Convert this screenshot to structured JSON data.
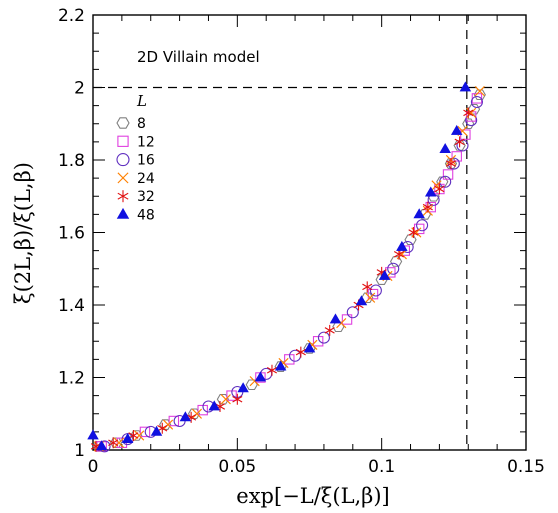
{
  "chart_data": {
    "type": "scatter",
    "title": "2D Villain model",
    "xlabel": "exp[−L/ξ(L,β)]",
    "ylabel": "ξ(2L,β)/ξ(L,β)",
    "xlim": [
      0,
      0.15
    ],
    "ylim": [
      1,
      2.2
    ],
    "x_ticks": [
      "0",
      "0.05",
      "0.1",
      "0.15"
    ],
    "y_ticks": [
      "1",
      "1.2",
      "1.4",
      "1.6",
      "1.8",
      "2",
      "2.2"
    ],
    "legend_title": "L",
    "legend_position": "top-left",
    "reference_lines": [
      {
        "orientation": "horizontal",
        "value": 2,
        "style": "dashed"
      },
      {
        "orientation": "vertical",
        "value": 0.1295,
        "style": "dashed"
      }
    ],
    "series": [
      {
        "name": "8",
        "marker": "hexagon-open",
        "color": "#808080",
        "x": [
          0.002,
          0.008,
          0.015,
          0.025,
          0.035,
          0.045,
          0.055,
          0.065,
          0.075,
          0.085,
          0.095,
          0.1,
          0.105,
          0.11,
          0.115,
          0.118,
          0.121,
          0.124,
          0.127,
          0.13,
          0.132,
          0.134
        ],
        "y": [
          1.01,
          1.02,
          1.04,
          1.07,
          1.1,
          1.14,
          1.18,
          1.23,
          1.28,
          1.34,
          1.42,
          1.47,
          1.52,
          1.58,
          1.65,
          1.7,
          1.74,
          1.79,
          1.84,
          1.9,
          1.94,
          1.98
        ]
      },
      {
        "name": "12",
        "marker": "square-open",
        "color": "#e040e0",
        "x": [
          0.003,
          0.01,
          0.018,
          0.028,
          0.038,
          0.048,
          0.058,
          0.068,
          0.078,
          0.088,
          0.097,
          0.103,
          0.108,
          0.113,
          0.117,
          0.12,
          0.123,
          0.126,
          0.129,
          0.131,
          0.133
        ],
        "y": [
          1.01,
          1.02,
          1.05,
          1.08,
          1.11,
          1.15,
          1.2,
          1.25,
          1.3,
          1.36,
          1.43,
          1.49,
          1.55,
          1.61,
          1.67,
          1.72,
          1.76,
          1.81,
          1.87,
          1.92,
          1.97
        ]
      },
      {
        "name": "16",
        "marker": "circle-open",
        "color": "#6030c0",
        "x": [
          0.004,
          0.012,
          0.02,
          0.03,
          0.04,
          0.05,
          0.06,
          0.07,
          0.08,
          0.09,
          0.098,
          0.104,
          0.109,
          0.114,
          0.118,
          0.122,
          0.125,
          0.128,
          0.131,
          0.133
        ],
        "y": [
          1.01,
          1.03,
          1.05,
          1.08,
          1.12,
          1.16,
          1.21,
          1.26,
          1.31,
          1.38,
          1.44,
          1.5,
          1.56,
          1.62,
          1.69,
          1.74,
          1.79,
          1.84,
          1.91,
          1.96
        ]
      },
      {
        "name": "24",
        "marker": "cross",
        "color": "#ff8000",
        "x": [
          0.002,
          0.009,
          0.016,
          0.026,
          0.036,
          0.046,
          0.056,
          0.066,
          0.076,
          0.086,
          0.096,
          0.102,
          0.107,
          0.112,
          0.116,
          0.119,
          0.124,
          0.128,
          0.131,
          0.134
        ],
        "y": [
          1.01,
          1.02,
          1.04,
          1.07,
          1.1,
          1.14,
          1.19,
          1.24,
          1.29,
          1.35,
          1.42,
          1.48,
          1.54,
          1.6,
          1.66,
          1.73,
          1.8,
          1.88,
          1.93,
          1.99
        ]
      },
      {
        "name": "32",
        "marker": "asterisk",
        "color": "#e01010",
        "x": [
          0.001,
          0.007,
          0.014,
          0.024,
          0.034,
          0.044,
          0.05,
          0.062,
          0.072,
          0.082,
          0.092,
          0.095,
          0.1,
          0.106,
          0.111,
          0.116,
          0.12,
          0.124,
          0.127,
          0.13
        ],
        "y": [
          1.01,
          1.02,
          1.04,
          1.06,
          1.09,
          1.12,
          1.14,
          1.22,
          1.27,
          1.33,
          1.4,
          1.45,
          1.49,
          1.54,
          1.6,
          1.67,
          1.72,
          1.79,
          1.85,
          1.93
        ]
      },
      {
        "name": "48",
        "marker": "triangle-filled",
        "color": "#1010e0",
        "x": [
          0.0,
          0.003,
          0.012,
          0.022,
          0.032,
          0.042,
          0.052,
          0.058,
          0.065,
          0.075,
          0.084,
          0.093,
          0.101,
          0.107,
          0.113,
          0.117,
          0.122,
          0.126,
          0.129
        ],
        "y": [
          1.04,
          1.01,
          1.03,
          1.05,
          1.09,
          1.12,
          1.17,
          1.2,
          1.23,
          1.28,
          1.36,
          1.41,
          1.48,
          1.56,
          1.65,
          1.71,
          1.83,
          1.88,
          2.0
        ]
      }
    ]
  }
}
